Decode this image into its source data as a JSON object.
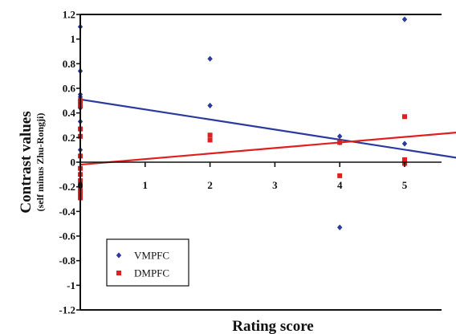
{
  "chart_data": {
    "type": "scatter",
    "xlabel": "Rating score",
    "ylabel": "Contrast values",
    "ylabel_sub": "(self minus Zhu-Rongji)",
    "ylim": [
      -1.2,
      1.2
    ],
    "xlim": [
      0,
      6
    ],
    "x_tick_labels": [
      {
        "x": 0,
        "label": "0"
      },
      {
        "x": 1,
        "label": "1"
      },
      {
        "x": 2,
        "label": "2"
      },
      {
        "x": 3,
        "label": "3"
      },
      {
        "x": 4,
        "label": "4"
      },
      {
        "x": 5,
        "label": "5"
      }
    ],
    "y_ticks": [
      1.2,
      1,
      0.8,
      0.6,
      0.4,
      0.2,
      0,
      -0.2,
      -0.4,
      -0.6,
      -0.8,
      -1,
      -1.2
    ],
    "y_tick_labels": [
      "1.2",
      "1",
      "0.8",
      "0.6",
      "0.4",
      "0.2",
      "0",
      "-0.2",
      "-0.4",
      "-0.6",
      "-0.8",
      "-1",
      "-1.2"
    ],
    "grid": false,
    "legend_position": "bottom-left",
    "series": [
      {
        "name": "VMPFC",
        "color": "#2a3a9e",
        "marker": "diamond",
        "points": [
          [
            0,
            1.1
          ],
          [
            0,
            0.74
          ],
          [
            0,
            0.55
          ],
          [
            0,
            0.53
          ],
          [
            0,
            0.5
          ],
          [
            0,
            0.48
          ],
          [
            0,
            0.44
          ],
          [
            0,
            0.33
          ],
          [
            0,
            0.27
          ],
          [
            0,
            0.1
          ],
          [
            0,
            -0.19
          ],
          [
            0,
            -0.24
          ],
          [
            2,
            0.84
          ],
          [
            2,
            0.46
          ],
          [
            4,
            0.21
          ],
          [
            4,
            0.16
          ],
          [
            4,
            -0.53
          ],
          [
            5,
            1.16
          ],
          [
            5,
            0.15
          ]
        ],
        "trend": {
          "x": [
            0,
            6
          ],
          "y": [
            0.51,
            0.02
          ]
        }
      },
      {
        "name": "DMPFC",
        "color": "#e02020",
        "marker": "square",
        "points": [
          [
            0,
            0.5
          ],
          [
            0,
            0.46
          ],
          [
            0,
            0.27
          ],
          [
            0,
            0.21
          ],
          [
            0,
            0.05
          ],
          [
            0,
            -0.05
          ],
          [
            0,
            -0.1
          ],
          [
            0,
            -0.15
          ],
          [
            0,
            -0.19
          ],
          [
            0,
            -0.23
          ],
          [
            0,
            -0.26
          ],
          [
            0,
            -0.29
          ],
          [
            2,
            0.22
          ],
          [
            2,
            0.18
          ],
          [
            4,
            0.16
          ],
          [
            4,
            -0.11
          ],
          [
            5,
            0.37
          ],
          [
            5,
            0.02
          ],
          [
            5,
            -0.01
          ]
        ],
        "trend": {
          "x": [
            0,
            6
          ],
          "y": [
            -0.02,
            0.25
          ]
        }
      }
    ]
  }
}
